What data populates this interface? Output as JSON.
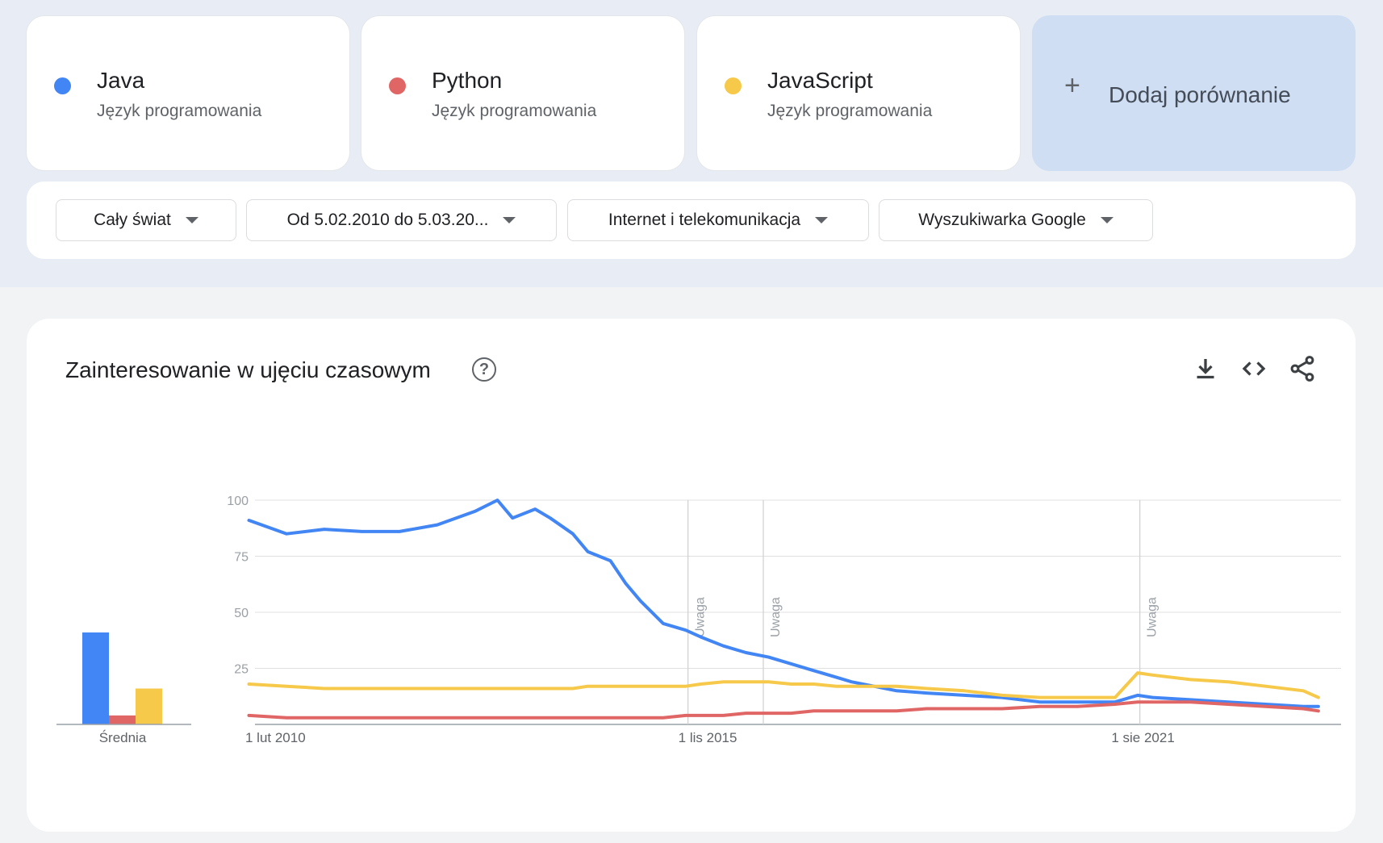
{
  "terms": [
    {
      "name": "Java",
      "subtitle": "Język programowania",
      "color": "#4285f4"
    },
    {
      "name": "Python",
      "subtitle": "Język programowania",
      "color": "#e06666"
    },
    {
      "name": "JavaScript",
      "subtitle": "Język programowania",
      "color": "#f6c94a"
    }
  ],
  "add_comparison": {
    "icon": "plus-icon",
    "label": "Dodaj porównanie"
  },
  "filters": [
    {
      "label": "Cały świat",
      "icon": "caret-down-icon"
    },
    {
      "label": "Od 5.02.2010 do 5.03.20...",
      "icon": "caret-down-icon"
    },
    {
      "label": "Internet i telekomunikacja",
      "icon": "caret-down-icon"
    },
    {
      "label": "Wyszukiwarka Google",
      "icon": "caret-down-icon"
    }
  ],
  "chart_panel": {
    "title": "Zainteresowanie w ujęciu czasowym",
    "help_icon": "help-circle-icon",
    "help_glyph": "?",
    "tools": [
      "download-icon",
      "embed-code-icon",
      "share-icon"
    ]
  },
  "chart_data": [
    {
      "type": "bar",
      "categories": [
        "Java",
        "Python",
        "JavaScript"
      ],
      "values": [
        41,
        4,
        16
      ],
      "xlabel": "Średnia",
      "colors": [
        "#4285f4",
        "#e06666",
        "#f6c94a"
      ]
    },
    {
      "type": "line",
      "ylim": [
        0,
        100
      ],
      "yticks": [
        25,
        50,
        75,
        100
      ],
      "xlim": [
        2010.08,
        2024.18
      ],
      "xticks": [
        {
          "x": 2010.08,
          "label": "1 lut 2010"
        },
        {
          "x": 2015.83,
          "label": "1 lis 2015"
        },
        {
          "x": 2021.58,
          "label": "1 sie 2021"
        }
      ],
      "notes": [
        {
          "x": 2015.83,
          "label": "Uwaga"
        },
        {
          "x": 2016.83,
          "label": "Uwaga"
        },
        {
          "x": 2021.83,
          "label": "Uwaga"
        }
      ],
      "grid": true,
      "x": [
        2010.0,
        2010.5,
        2011.0,
        2011.5,
        2012.0,
        2012.5,
        2013.0,
        2013.3,
        2013.5,
        2013.8,
        2014.0,
        2014.3,
        2014.5,
        2014.8,
        2015.0,
        2015.2,
        2015.5,
        2015.8,
        2016.0,
        2016.3,
        2016.6,
        2016.9,
        2017.2,
        2017.5,
        2017.8,
        2018.0,
        2018.3,
        2018.6,
        2019.0,
        2019.5,
        2020.0,
        2020.5,
        2021.0,
        2021.5,
        2021.8,
        2022.0,
        2022.5,
        2023.0,
        2023.5,
        2024.0,
        2024.2
      ],
      "series": [
        {
          "name": "Java",
          "color": "#4285f4",
          "values": [
            91,
            85,
            87,
            86,
            86,
            89,
            95,
            100,
            92,
            96,
            92,
            85,
            77,
            73,
            63,
            55,
            45,
            42,
            39,
            35,
            32,
            30,
            27,
            24,
            21,
            19,
            17,
            15,
            14,
            13,
            12,
            10,
            10,
            10,
            13,
            12,
            11,
            10,
            9,
            8,
            8
          ]
        },
        {
          "name": "Python",
          "color": "#e06666",
          "values": [
            4,
            3,
            3,
            3,
            3,
            3,
            3,
            3,
            3,
            3,
            3,
            3,
            3,
            3,
            3,
            3,
            3,
            4,
            4,
            4,
            5,
            5,
            5,
            6,
            6,
            6,
            6,
            6,
            7,
            7,
            7,
            8,
            8,
            9,
            10,
            10,
            10,
            9,
            8,
            7,
            6
          ]
        },
        {
          "name": "JavaScript",
          "color": "#f6c94a",
          "values": [
            18,
            17,
            16,
            16,
            16,
            16,
            16,
            16,
            16,
            16,
            16,
            16,
            17,
            17,
            17,
            17,
            17,
            17,
            18,
            19,
            19,
            19,
            18,
            18,
            17,
            17,
            17,
            17,
            16,
            15,
            13,
            12,
            12,
            12,
            23,
            22,
            20,
            19,
            17,
            15,
            12
          ]
        }
      ]
    }
  ]
}
